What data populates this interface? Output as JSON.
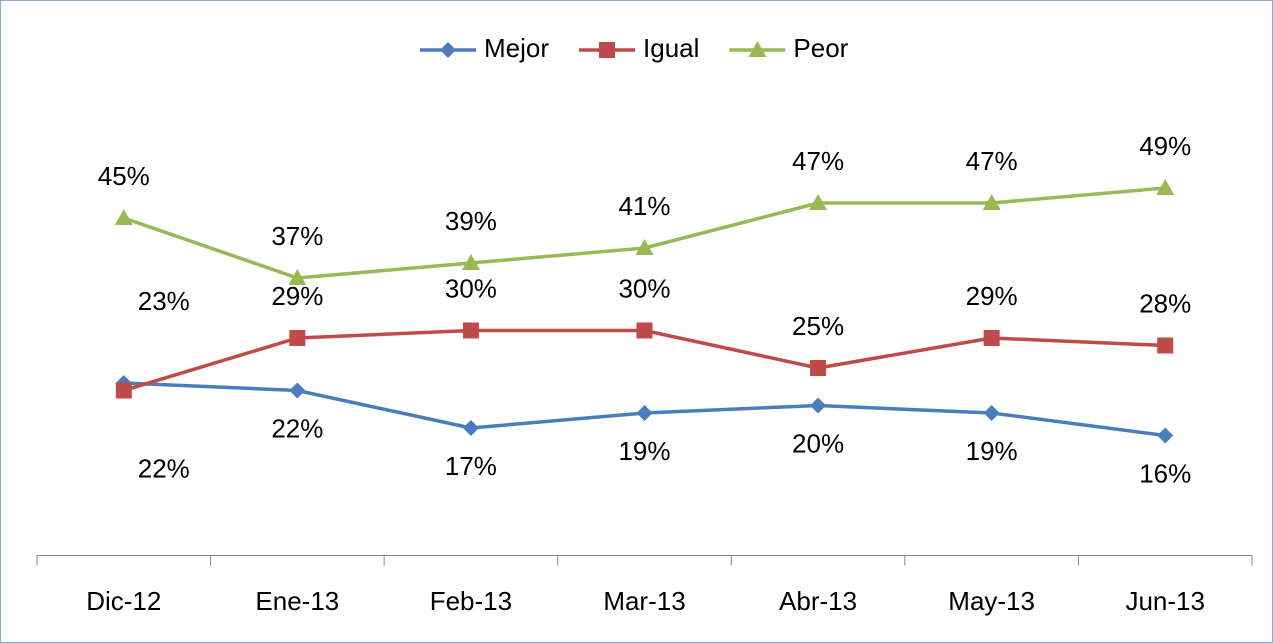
{
  "chart_data": {
    "type": "line",
    "categories": [
      "Dic-12",
      "Ene-13",
      "Feb-13",
      "Mar-13",
      "Abr-13",
      "May-13",
      "Jun-13"
    ],
    "series": [
      {
        "name": "Mejor",
        "color": "#4a7ebb",
        "marker": "diamond",
        "values": [
          23,
          22,
          17,
          19,
          20,
          19,
          16
        ],
        "value_labels": [
          "23%",
          "22%",
          "17%",
          "19%",
          "20%",
          "19%",
          "16%"
        ]
      },
      {
        "name": "Igual",
        "color": "#be4b48",
        "marker": "square",
        "values": [
          22,
          29,
          30,
          30,
          25,
          29,
          28
        ],
        "value_labels": [
          "22%",
          "29%",
          "30%",
          "30%",
          "25%",
          "29%",
          "28%"
        ]
      },
      {
        "name": "Peor",
        "color": "#98b954",
        "marker": "triangle",
        "values": [
          45,
          37,
          39,
          41,
          47,
          47,
          49
        ],
        "value_labels": [
          "45%",
          "37%",
          "39%",
          "41%",
          "47%",
          "47%",
          "49%"
        ]
      }
    ],
    "ylim": [
      0,
      60
    ],
    "legend": "top"
  }
}
